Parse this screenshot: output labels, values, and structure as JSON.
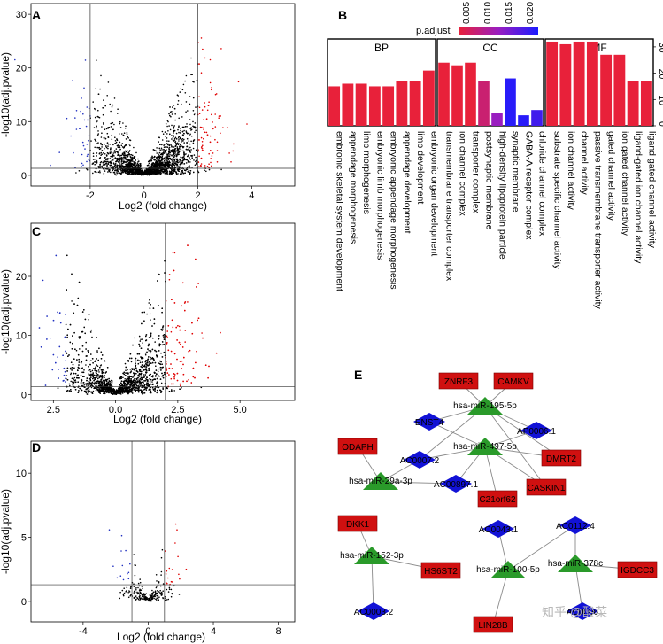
{
  "chart_data": [
    {
      "panel": "A",
      "type": "scatter",
      "xlabel": "Log2 (fold change)",
      "ylabel": "-log10(adj.pvalue)",
      "xlim": [
        -4.2,
        5.6
      ],
      "ylim": [
        -2,
        32
      ],
      "x_ticks": [
        "-2",
        "0",
        "2",
        "4"
      ],
      "y_ticks": [
        "0",
        "10",
        "20",
        "30"
      ],
      "fc_cutoffs": [
        -2,
        2
      ],
      "p_cutoff": 1.3,
      "grid": false
    },
    {
      "panel": "B",
      "type": "bar",
      "legend_title": "p.adjust",
      "legend_ticks": [
        "0.005",
        "0.010",
        "0.015",
        "0.020"
      ],
      "legend_position": "top",
      "colors": {
        "low": "#e8213a",
        "high": "#1b1bff"
      },
      "ylim": [
        0,
        33
      ],
      "y_ticks": [
        "0",
        "10",
        "20",
        "30"
      ],
      "facets": [
        {
          "name": "BP",
          "terms": [
            "embronic skeletal system development",
            "appendage morphogenesis",
            "limb morphogenesis",
            "embryonic limb morphogenesis",
            "embryonic appendage morphogenesis",
            "appendage development",
            "limb development",
            "embryonic organ development"
          ],
          "values": [
            15,
            16,
            16,
            15,
            15,
            17,
            17,
            21
          ],
          "p_adjust": [
            0.002,
            0.002,
            0.002,
            0.002,
            0.002,
            0.002,
            0.002,
            0.002
          ]
        },
        {
          "name": "CC",
          "terms": [
            "transmembrane transporter complex",
            "ion channel complex",
            "transporter complex",
            "postsynaptic membrane",
            "high-density lipoprotein particle",
            "synaptic membrane",
            "GABA-A receptor complex",
            "chloride channel complex"
          ],
          "values": [
            24,
            23,
            24,
            17,
            5,
            18,
            4,
            6
          ],
          "p_adjust": [
            0.002,
            0.002,
            0.002,
            0.006,
            0.012,
            0.021,
            0.021,
            0.019
          ]
        },
        {
          "name": "MF",
          "terms": [
            "substrate specific channel activity",
            "ion channel activity",
            "channel activity",
            "passive transmembrane transporter activity",
            "gated channel activity",
            "ion gated channel activity",
            "ligand-gated ion channel activity",
            "ligand gated channel activity"
          ],
          "values": [
            32,
            31,
            32,
            32,
            27,
            27,
            17,
            17
          ],
          "p_adjust": [
            0.002,
            0.002,
            0.002,
            0.002,
            0.002,
            0.002,
            0.002,
            0.002
          ]
        }
      ]
    },
    {
      "panel": "C",
      "type": "scatter",
      "xlabel": "Log2 (fold change)",
      "ylabel": "-log10(adj.pvalue)",
      "xlim": [
        -3.4,
        7.2
      ],
      "ylim": [
        -1,
        29
      ],
      "x_ticks": [
        "2.5",
        "0.0",
        "2.5",
        "5.0"
      ],
      "y_ticks": [
        "0",
        "10",
        "20"
      ],
      "fc_cutoffs": [
        -2,
        2
      ],
      "p_cutoff": 1.3,
      "grid": false
    },
    {
      "panel": "D",
      "type": "scatter",
      "xlabel": "Log2 (fold change)",
      "ylabel": "-log10(adj.pvalue)",
      "xlim": [
        -7.2,
        9
      ],
      "ylim": [
        -1.6,
        12.5
      ],
      "x_ticks": [
        "-4",
        "0",
        "4",
        "8"
      ],
      "y_ticks": [
        "0",
        "5",
        "10"
      ],
      "fc_cutoffs": [
        -1,
        1
      ],
      "p_cutoff": 1.3,
      "grid": false
    },
    {
      "panel": "E",
      "type": "network",
      "mirnas": [
        "hsa-miR-195-5p",
        "hsa-miR-497-5p",
        "hsa-miR-29a-3p",
        "hsa-miR-152-3p",
        "hsa-miR-100-5p",
        "hsa-miR-378c"
      ],
      "mrnas": [
        "ZNRF3",
        "CAMKV",
        "ODAPH",
        "DMRT2",
        "CASKIN1",
        "C21orf62",
        "DKK1",
        "HS6ST2",
        "LIN28B",
        "IGDCC3"
      ],
      "lncrnas": [
        "ENST4",
        "AP0006.1",
        "AC0007.2",
        "AC00897.1",
        "AC0043.1",
        "AC0112.4",
        "AC0003.2",
        "AC0006"
      ],
      "colors": {
        "mirna": "#2a9a2a",
        "mrna": "#d01010",
        "lncrna": "#1212d6"
      }
    }
  ],
  "watermark": "知乎 @酸菜"
}
